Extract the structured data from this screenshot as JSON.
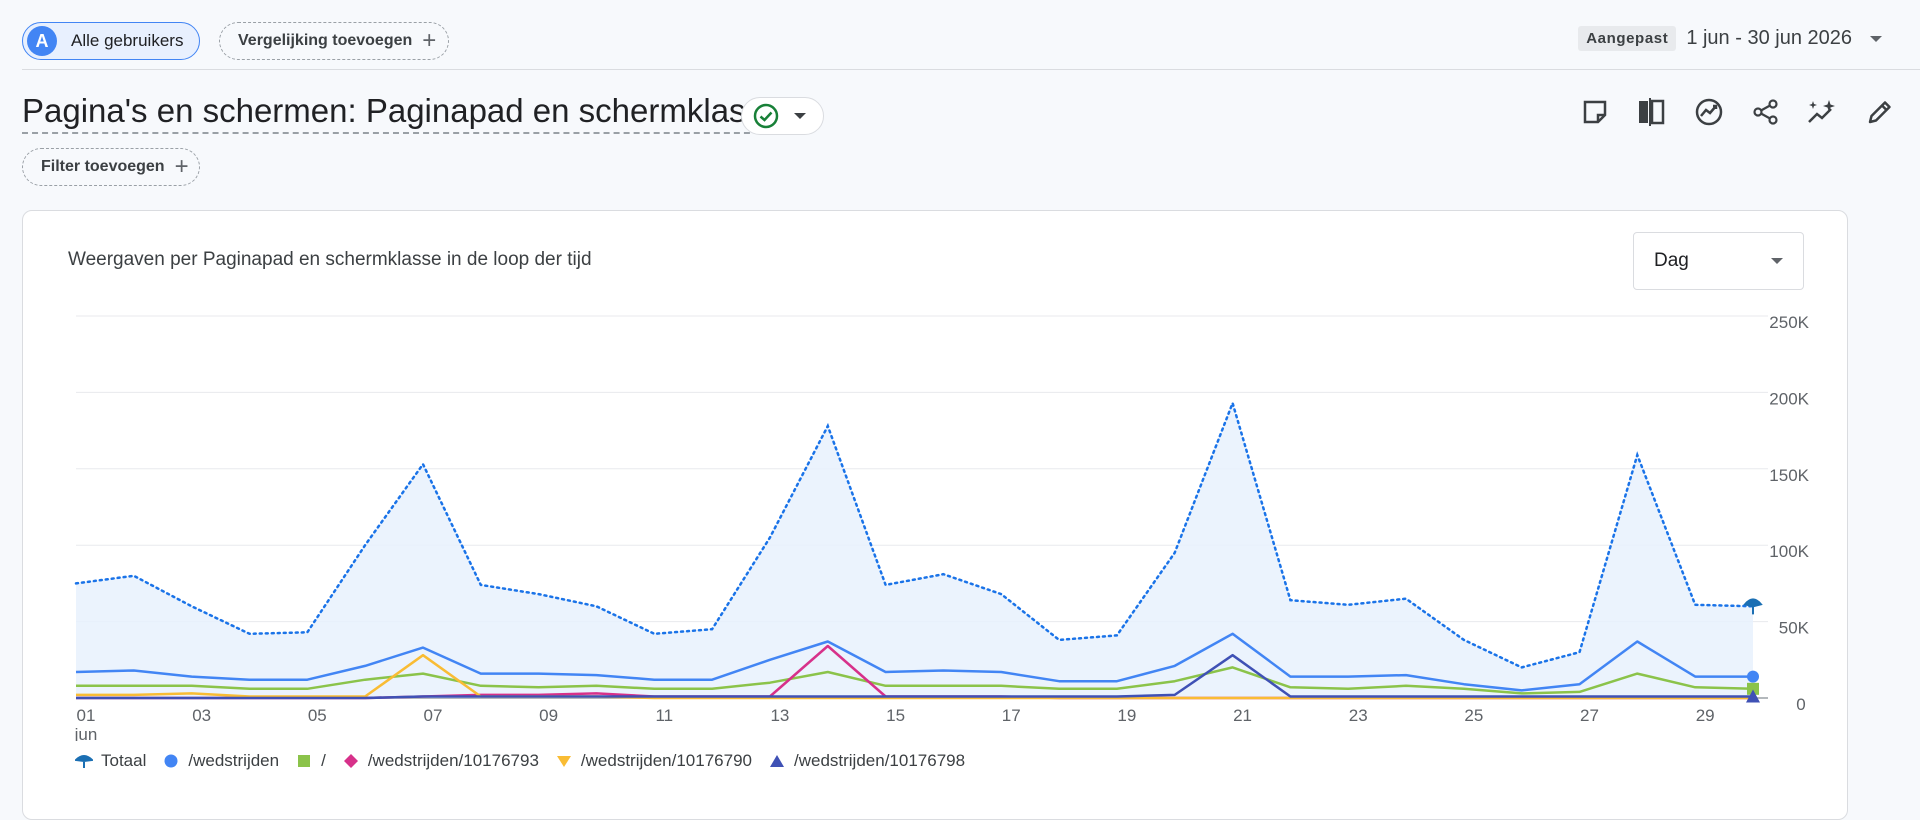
{
  "topbar": {
    "segment_avatar": "A",
    "segment_label": "Alle gebruikers",
    "compare_label": "Vergelijking toevoegen",
    "date_badge": "Aangepast",
    "date_range": "1 jun - 30 jun 2026"
  },
  "header": {
    "title": "Pagina's en schermen: Paginapad en schermklasse",
    "filter_label": "Filter toevoegen"
  },
  "card": {
    "title": "Weergaven per Paginapad en schermklasse in de loop der tijd",
    "granularity": "Dag"
  },
  "colors": {
    "total": "#1a73e8",
    "wedstrijden": "#4285f4",
    "root": "#8bc34a",
    "w10176793": "#d7318a",
    "w10176790": "#f9bc34",
    "w10176798": "#3f51b5"
  },
  "chart_data": {
    "type": "line",
    "x": [
      "01",
      "02",
      "03",
      "04",
      "05",
      "06",
      "07",
      "08",
      "09",
      "10",
      "11",
      "12",
      "13",
      "14",
      "15",
      "16",
      "17",
      "18",
      "19",
      "20",
      "21",
      "22",
      "23",
      "24",
      "25",
      "26",
      "27",
      "28",
      "29",
      "30"
    ],
    "x_tick_labels": [
      "01",
      "03",
      "05",
      "07",
      "09",
      "11",
      "13",
      "15",
      "17",
      "19",
      "21",
      "23",
      "25",
      "27",
      "29"
    ],
    "x_sublabel": "jun",
    "y_ticks": [
      "0",
      "50K",
      "100K",
      "150K",
      "200K",
      "250K"
    ],
    "ylim": [
      0,
      250000
    ],
    "grid": true,
    "legend_position": "bottom",
    "series": [
      {
        "name": "Totaal",
        "key": "total",
        "style": "dotted-area",
        "values": [
          75000,
          80000,
          60000,
          42000,
          43000,
          100000,
          153000,
          74000,
          68000,
          60000,
          42000,
          45000,
          105000,
          178000,
          74000,
          81000,
          68000,
          38000,
          41000,
          95000,
          193000,
          64000,
          61000,
          65000,
          38000,
          20000,
          30000,
          159000,
          61000,
          60000
        ]
      },
      {
        "name": "/wedstrijden",
        "key": "wedstrijden",
        "values": [
          17000,
          18000,
          14000,
          12000,
          12000,
          21000,
          33000,
          16000,
          16000,
          15000,
          12000,
          12000,
          25000,
          37000,
          17000,
          18000,
          17000,
          11000,
          11000,
          21000,
          42000,
          14000,
          14000,
          15000,
          9000,
          5000,
          9000,
          37000,
          14000,
          14000
        ]
      },
      {
        "name": "/",
        "key": "root",
        "values": [
          8000,
          8000,
          8000,
          6000,
          6000,
          12000,
          16000,
          8000,
          7000,
          8000,
          6000,
          6000,
          10000,
          17000,
          8000,
          8000,
          8000,
          6000,
          6000,
          11000,
          20000,
          7000,
          6000,
          8000,
          6000,
          3000,
          4000,
          16000,
          7000,
          6000
        ]
      },
      {
        "name": "/wedstrijden/10176793",
        "key": "w10176793",
        "values": [
          0,
          0,
          0,
          0,
          0,
          0,
          1000,
          2000,
          2000,
          3000,
          1000,
          1000,
          1000,
          34000,
          1000,
          1000,
          1000,
          0,
          0,
          0,
          0,
          0,
          0,
          0,
          0,
          0,
          0,
          0,
          0,
          0
        ]
      },
      {
        "name": "/wedstrijden/10176790",
        "key": "w10176790",
        "values": [
          2000,
          2000,
          3000,
          1000,
          1000,
          1000,
          28000,
          1000,
          1000,
          1000,
          0,
          0,
          0,
          0,
          0,
          0,
          0,
          0,
          0,
          0,
          0,
          0,
          0,
          0,
          0,
          0,
          0,
          0,
          0,
          0
        ]
      },
      {
        "name": "/wedstrijden/10176798",
        "key": "w10176798",
        "values": [
          0,
          0,
          0,
          0,
          0,
          0,
          1000,
          1000,
          1000,
          1000,
          1000,
          1000,
          1000,
          1000,
          1000,
          1000,
          1000,
          1000,
          1000,
          2000,
          28000,
          1000,
          1000,
          1000,
          1000,
          1000,
          1000,
          1000,
          1000,
          1000
        ]
      }
    ]
  }
}
